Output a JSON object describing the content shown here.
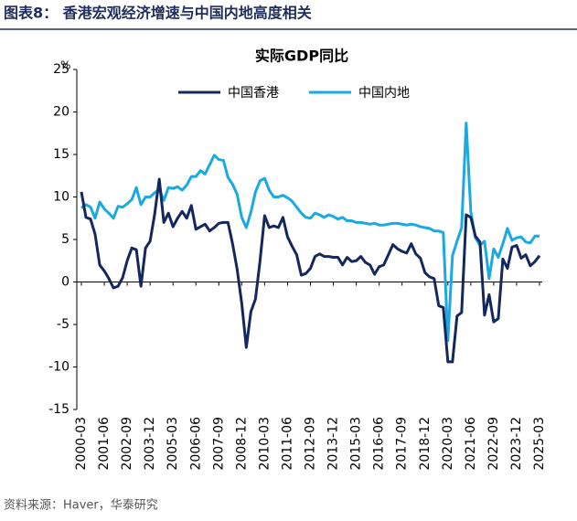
{
  "header": {
    "title": "图表8： 香港宏观经济增速与中国内地高度相关"
  },
  "chart_data": {
    "type": "line",
    "title": "实际GDP同比",
    "y_label": "%",
    "categories": [
      "2000-03",
      null,
      null,
      null,
      null,
      "2001-06",
      null,
      null,
      null,
      null,
      "2002-09",
      null,
      null,
      null,
      null,
      "2003-12",
      null,
      null,
      null,
      null,
      "2005-03",
      null,
      null,
      null,
      null,
      "2006-06",
      null,
      null,
      null,
      null,
      "2007-09",
      null,
      null,
      null,
      null,
      "2008-12",
      null,
      null,
      null,
      null,
      "2010-03",
      null,
      null,
      null,
      null,
      "2011-06",
      null,
      null,
      null,
      null,
      "2012-09",
      null,
      null,
      null,
      null,
      "2013-12",
      null,
      null,
      null,
      null,
      "2015-03",
      null,
      null,
      null,
      null,
      "2016-06",
      null,
      null,
      null,
      null,
      "2017-09",
      null,
      null,
      null,
      null,
      "2018-12",
      null,
      null,
      null,
      null,
      "2020-03",
      null,
      null,
      null,
      null,
      "2021-06",
      null,
      null,
      null,
      null,
      "2022-09",
      null,
      null,
      null,
      null,
      "2023-12",
      null,
      null,
      null,
      null,
      "2025-03"
    ],
    "series": [
      {
        "name": "中国香港",
        "color": "#14285f",
        "values": [
          10.6,
          7.6,
          7.4,
          5.6,
          2.0,
          1.3,
          0.4,
          -0.7,
          -0.5,
          0.5,
          2.5,
          4.0,
          3.8,
          -0.5,
          4.0,
          4.8,
          8.0,
          12.1,
          7.0,
          8.1,
          6.5,
          7.5,
          8.3,
          7.5,
          9.0,
          6.2,
          6.5,
          6.8,
          6.0,
          6.4,
          6.9,
          7.0,
          7.0,
          4.5,
          1.5,
          -2.5,
          -7.7,
          -3.5,
          -2.0,
          2.5,
          7.8,
          6.4,
          6.6,
          6.4,
          7.6,
          5.3,
          4.2,
          3.2,
          0.8,
          1.0,
          1.6,
          3.0,
          3.3,
          3.0,
          3.0,
          2.9,
          2.9,
          2.0,
          2.9,
          2.4,
          2.5,
          3.0,
          2.3,
          2.0,
          0.9,
          1.8,
          2.0,
          3.2,
          4.4,
          3.9,
          3.6,
          3.4,
          4.5,
          3.3,
          2.8,
          1.1,
          0.6,
          0.4,
          -2.8,
          -3.0,
          -9.4,
          -9.4,
          -4.0,
          -3.6,
          7.9,
          7.6,
          5.4,
          4.7,
          -3.9,
          -1.5,
          -4.7,
          -4.3,
          2.7,
          1.6,
          4.1,
          4.3,
          2.8,
          3.2,
          1.9,
          2.4,
          3.1
        ]
      },
      {
        "name": "中国内地",
        "color": "#1ba9e1",
        "values": [
          8.7,
          9.1,
          8.8,
          7.5,
          9.4,
          8.6,
          8.1,
          7.5,
          8.9,
          8.8,
          9.2,
          9.7,
          11.1,
          9.1,
          10.0,
          10.0,
          10.5,
          10.9,
          9.6,
          11.1,
          11.0,
          11.2,
          10.8,
          11.4,
          12.4,
          12.4,
          13.1,
          12.7,
          13.8,
          14.9,
          14.4,
          14.3,
          12.3,
          11.5,
          10.3,
          7.6,
          6.4,
          8.2,
          10.6,
          11.9,
          12.2,
          10.8,
          10.0,
          10.0,
          10.2,
          9.9,
          9.5,
          8.8,
          8.1,
          7.6,
          7.5,
          8.1,
          7.9,
          7.6,
          7.9,
          7.7,
          7.4,
          7.6,
          7.2,
          7.2,
          7.0,
          7.0,
          6.9,
          6.8,
          6.9,
          6.7,
          6.7,
          6.8,
          6.9,
          6.9,
          6.8,
          6.7,
          6.8,
          6.7,
          6.5,
          6.4,
          6.3,
          6.0,
          6.0,
          5.8,
          -6.9,
          3.1,
          4.8,
          6.4,
          18.7,
          8.3,
          5.2,
          4.3,
          4.8,
          0.4,
          3.9,
          2.9,
          4.5,
          6.3,
          4.9,
          5.2,
          5.3,
          4.7,
          4.6,
          5.4,
          5.4
        ]
      }
    ],
    "ylim": [
      -15,
      25
    ],
    "yticks": [
      -15,
      -10,
      -5,
      0,
      5,
      10,
      15,
      20,
      25
    ]
  },
  "footer": {
    "source": "资料来源：Haver，华泰研究"
  }
}
